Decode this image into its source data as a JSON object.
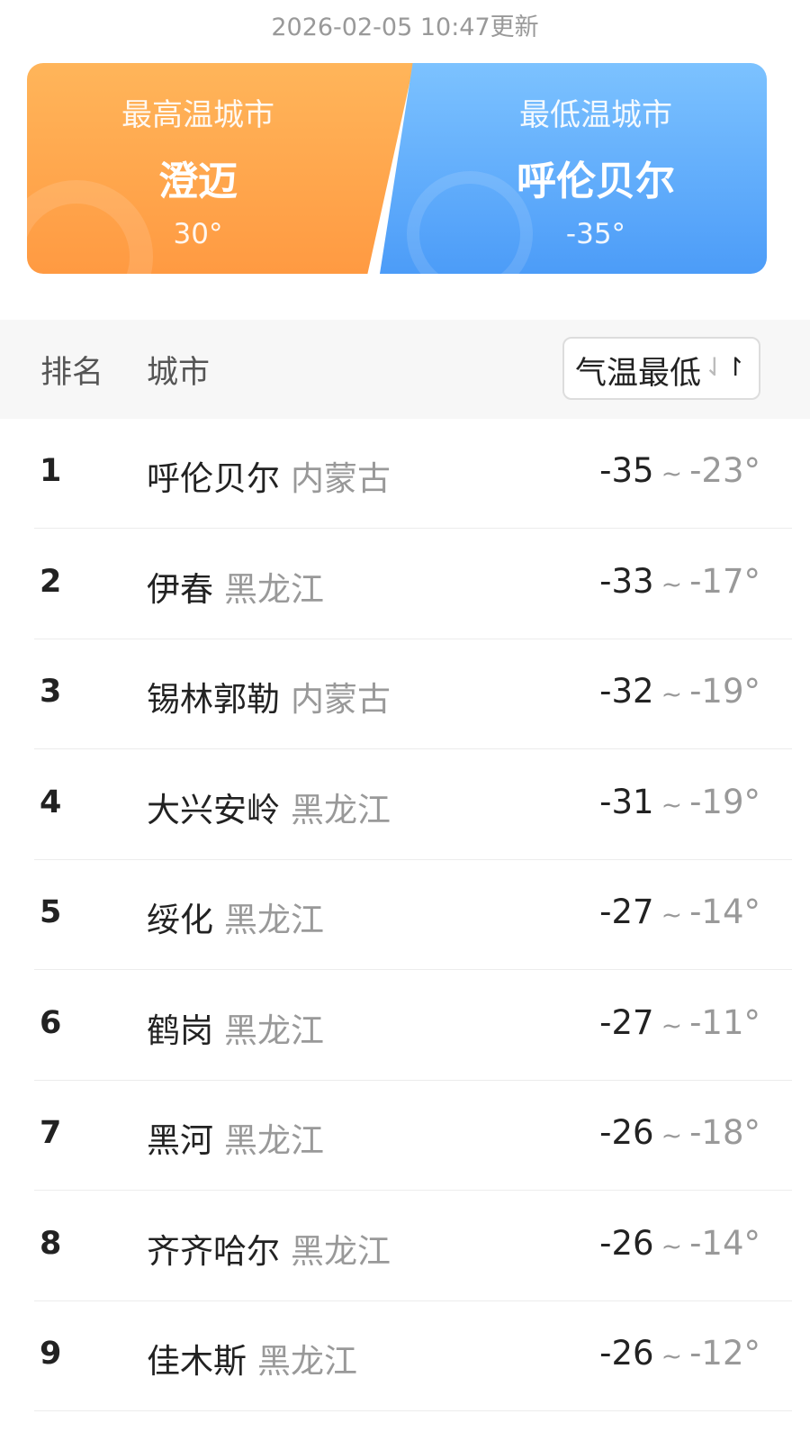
{
  "updated": "2026-02-05 10:47更新",
  "highest": {
    "label": "最高温城市",
    "city": "澄迈",
    "temp": "30°",
    "color": "#ffa54e"
  },
  "lowest": {
    "label": "最低温城市",
    "city": "呼伦贝尔",
    "temp": "-35°",
    "color": "#5aa8fa"
  },
  "table": {
    "col_rank": "排名",
    "col_city": "城市",
    "sort_label": "气温最低",
    "sort_icon": "sort-arrows-icon",
    "rows": [
      {
        "rank": "1",
        "city": "呼伦贝尔",
        "province": "内蒙古",
        "min": "-35",
        "max": "-23°"
      },
      {
        "rank": "2",
        "city": "伊春",
        "province": "黑龙江",
        "min": "-33",
        "max": "-17°"
      },
      {
        "rank": "3",
        "city": "锡林郭勒",
        "province": "内蒙古",
        "min": "-32",
        "max": "-19°"
      },
      {
        "rank": "4",
        "city": "大兴安岭",
        "province": "黑龙江",
        "min": "-31",
        "max": "-19°"
      },
      {
        "rank": "5",
        "city": "绥化",
        "province": "黑龙江",
        "min": "-27",
        "max": "-14°"
      },
      {
        "rank": "6",
        "city": "鹤岗",
        "province": "黑龙江",
        "min": "-27",
        "max": "-11°"
      },
      {
        "rank": "7",
        "city": "黑河",
        "province": "黑龙江",
        "min": "-26",
        "max": "-18°"
      },
      {
        "rank": "8",
        "city": "齐齐哈尔",
        "province": "黑龙江",
        "min": "-26",
        "max": "-14°"
      },
      {
        "rank": "9",
        "city": "佳木斯",
        "province": "黑龙江",
        "min": "-26",
        "max": "-12°"
      }
    ]
  },
  "tilde": "~"
}
